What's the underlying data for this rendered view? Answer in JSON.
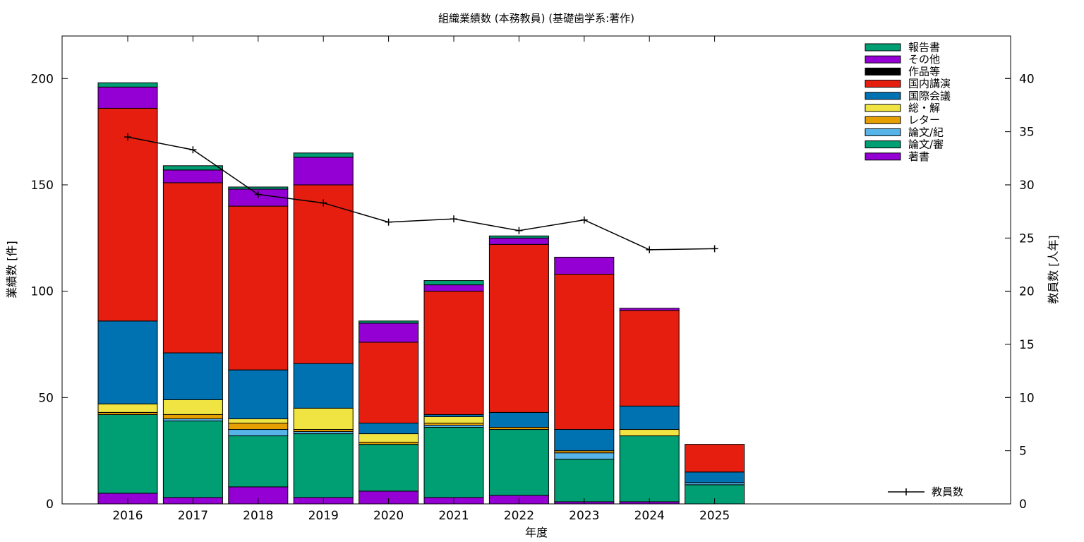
{
  "chart_data": {
    "type": "bar",
    "stacked": true,
    "title": "組織業績数 (本務教員) (基礎歯学系:著作)",
    "xlabel": "年度",
    "ylabel": "業績数 [件]",
    "y2label": "教員数 [人年]",
    "ylim": [
      0,
      220
    ],
    "y2lim": [
      0,
      44
    ],
    "yticks": [
      "0",
      "50",
      "100",
      "150",
      "200"
    ],
    "y2ticks": [
      "0",
      "5",
      "10",
      "15",
      "20",
      "25",
      "30",
      "35",
      "40"
    ],
    "categories": [
      "2016",
      "2017",
      "2018",
      "2019",
      "2020",
      "2021",
      "2022",
      "2023",
      "2024",
      "2025"
    ],
    "legend_position": "top-right",
    "series": [
      {
        "name": "著書",
        "color": "#9400d3",
        "values": [
          5,
          3,
          8,
          3,
          6,
          3,
          4,
          1,
          1,
          0
        ]
      },
      {
        "name": "論文/審",
        "color": "#009e73",
        "values": [
          37,
          36,
          24,
          30,
          22,
          33,
          31,
          20,
          31,
          9
        ]
      },
      {
        "name": "論文/紀",
        "color": "#56b4e9",
        "values": [
          0,
          1,
          3,
          1,
          0,
          1,
          0,
          3,
          0,
          1
        ]
      },
      {
        "name": "レター",
        "color": "#e69f00",
        "values": [
          1,
          2,
          3,
          1,
          1,
          1,
          1,
          1,
          0,
          0
        ]
      },
      {
        "name": "総・解",
        "color": "#f0e442",
        "values": [
          4,
          7,
          2,
          10,
          4,
          3,
          0,
          0,
          3,
          0
        ]
      },
      {
        "name": "国際会議",
        "color": "#0072b2",
        "values": [
          39,
          22,
          23,
          21,
          5,
          1,
          7,
          10,
          11,
          5
        ]
      },
      {
        "name": "国内講演",
        "color": "#e51e10",
        "values": [
          100,
          80,
          77,
          84,
          38,
          58,
          79,
          73,
          45,
          13
        ]
      },
      {
        "name": "作品等",
        "color": "#000000",
        "values": [
          0,
          0,
          0,
          0,
          0,
          0,
          0,
          0,
          0,
          0
        ]
      },
      {
        "name": "その他",
        "color": "#9400d3",
        "values": [
          10,
          6,
          8,
          13,
          9,
          3,
          3,
          8,
          1,
          0
        ]
      },
      {
        "name": "報告書",
        "color": "#009e73",
        "values": [
          2,
          2,
          1,
          2,
          1,
          2,
          1,
          0,
          0,
          0
        ]
      }
    ],
    "line_series": {
      "name": "教員数",
      "color": "#000000",
      "axis": "y2",
      "values": [
        34.5,
        33.3,
        29.1,
        28.3,
        26.5,
        26.8,
        25.7,
        26.7,
        23.9,
        24.0
      ]
    }
  }
}
